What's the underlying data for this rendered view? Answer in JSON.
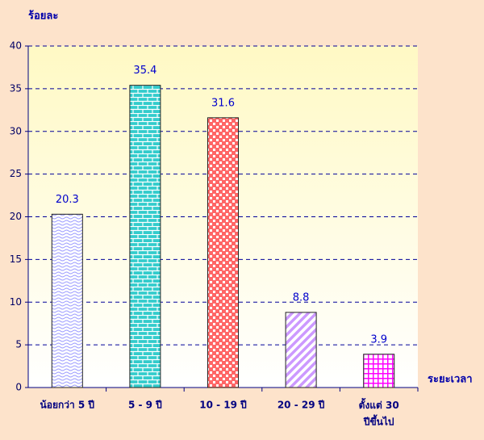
{
  "chart_data": {
    "type": "bar",
    "y_label": "ร้อยละ",
    "x_label": "ระยะเวลา",
    "categories": [
      "น้อยกว่า 5 ปี",
      "5 - 9 ปี",
      "10 - 19 ปี",
      "20 - 29 ปี",
      "ตั้งแต่ 30\nปีขึ้นไป"
    ],
    "values": [
      20.3,
      35.4,
      31.6,
      8.8,
      3.9
    ],
    "colors": [
      "#9999ff",
      "#33cccc",
      "#ff6666",
      "#cc99ff",
      "#ff00ff"
    ],
    "ylim": [
      0,
      40
    ],
    "yticks": [
      0,
      5,
      10,
      15,
      20,
      25,
      30,
      35,
      40
    ],
    "grid": true
  }
}
